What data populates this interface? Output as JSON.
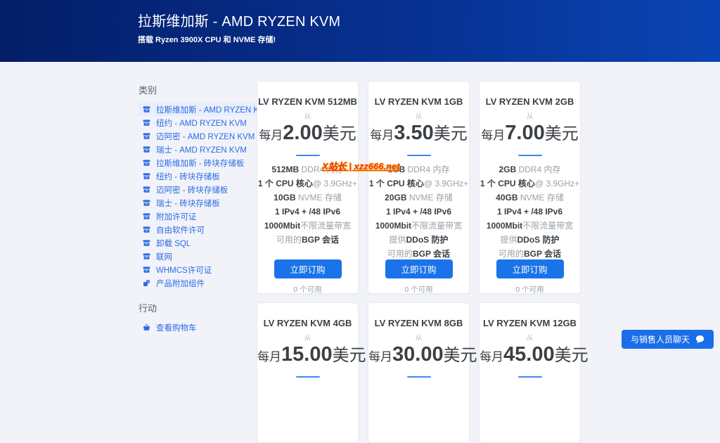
{
  "header": {
    "title": "拉斯维加斯 - AMD RYZEN KVM",
    "subtitle": "搭载 Ryzen 3900X CPU 和 NVME 存储!",
    "gradient_left": "#041e68",
    "gradient_right": "#0a44b4"
  },
  "sidebar": {
    "categories_heading": "类别",
    "items": [
      {
        "label": "拉斯维加斯 - AMD RYZEN KVM",
        "icon": "archive-icon",
        "active": true
      },
      {
        "label": "纽约 - AMD RYZEN KVM",
        "icon": "archive-icon",
        "active": false
      },
      {
        "label": "迈阿密 - AMD RYZEN KVM",
        "icon": "archive-icon",
        "active": false
      },
      {
        "label": "瑞士 - AMD RYZEN KVM",
        "icon": "archive-icon",
        "active": false
      },
      {
        "label": "拉斯维加斯 - 砖块存储板",
        "icon": "archive-icon",
        "active": false
      },
      {
        "label": "纽约 - 砖块存储板",
        "icon": "archive-icon",
        "active": false
      },
      {
        "label": "迈阿密 - 砖块存储板",
        "icon": "archive-icon",
        "active": false
      },
      {
        "label": "瑞士 - 砖块存储板",
        "icon": "archive-icon",
        "active": false
      },
      {
        "label": "附加许可证",
        "icon": "archive-icon",
        "active": false
      },
      {
        "label": "自由软件许可",
        "icon": "archive-icon",
        "active": false
      },
      {
        "label": "卸载 SQL",
        "icon": "archive-icon",
        "active": false
      },
      {
        "label": "联网",
        "icon": "archive-icon",
        "active": false
      },
      {
        "label": "WHMCS许可证",
        "icon": "archive-icon",
        "active": false
      },
      {
        "label": "产品附加组件",
        "icon": "addon-icon",
        "active": false
      }
    ],
    "actions_heading": "行动",
    "actions": [
      {
        "label": "查看购物车",
        "icon": "cart-icon"
      }
    ]
  },
  "plans": {
    "from_label": "从",
    "price_prefix": "每月",
    "price_suffix": "美元",
    "order_button_label": "立即订购",
    "availability_label": "0 个可用",
    "accent_color": "#1a73e8",
    "row1": [
      {
        "title": "LV RYZEN KVM 512MB",
        "price": "2.00",
        "features": [
          [
            {
              "text": "512MB",
              "bold": true
            },
            {
              "text": " DDR4 内存",
              "bold": false
            }
          ],
          [
            {
              "text": "1 个 CPU 核心",
              "bold": true
            },
            {
              "text": "@ 3.9GHz+",
              "bold": false
            }
          ],
          [
            {
              "text": "10GB",
              "bold": true
            },
            {
              "text": " NVME 存储",
              "bold": false
            }
          ],
          [
            {
              "text": "1 IPv4 + /48 IPv6",
              "bold": true
            }
          ],
          [
            {
              "text": "1000Mbit",
              "bold": true
            },
            {
              "text": "不限流量带宽",
              "bold": false
            }
          ],
          [
            {
              "text": "可用的",
              "bold": false
            },
            {
              "text": "BGP 会话",
              "bold": true
            }
          ]
        ]
      },
      {
        "title": "LV RYZEN KVM 1GB",
        "price": "3.50",
        "features": [
          [
            {
              "text": "1GB",
              "bold": true
            },
            {
              "text": " DDR4 内存",
              "bold": false
            }
          ],
          [
            {
              "text": "1 个 CPU 核心",
              "bold": true
            },
            {
              "text": "@ 3.9GHz+",
              "bold": false
            }
          ],
          [
            {
              "text": "20GB",
              "bold": true
            },
            {
              "text": " NVME 存储",
              "bold": false
            }
          ],
          [
            {
              "text": "1 IPv4 + /48 IPv6",
              "bold": true
            }
          ],
          [
            {
              "text": "1000Mbit",
              "bold": true
            },
            {
              "text": "不限流量带宽",
              "bold": false
            }
          ],
          [
            {
              "text": "提供",
              "bold": false
            },
            {
              "text": "DDoS 防护",
              "bold": true
            }
          ],
          [
            {
              "text": "可用的",
              "bold": false
            },
            {
              "text": "BGP 会话",
              "bold": true
            }
          ]
        ]
      },
      {
        "title": "LV RYZEN KVM 2GB",
        "price": "7.00",
        "features": [
          [
            {
              "text": "2GB",
              "bold": true
            },
            {
              "text": " DDR4 内存",
              "bold": false
            }
          ],
          [
            {
              "text": "1 个 CPU 核心",
              "bold": true
            },
            {
              "text": "@ 3.9GHz+",
              "bold": false
            }
          ],
          [
            {
              "text": "40GB",
              "bold": true
            },
            {
              "text": " NVME 存储",
              "bold": false
            }
          ],
          [
            {
              "text": "1 IPv4 + /48 IPv6",
              "bold": true
            }
          ],
          [
            {
              "text": "1000Mbit",
              "bold": true
            },
            {
              "text": "不限流量带宽",
              "bold": false
            }
          ],
          [
            {
              "text": "提供",
              "bold": false
            },
            {
              "text": "DDoS 防护",
              "bold": true
            }
          ],
          [
            {
              "text": "可用的",
              "bold": false
            },
            {
              "text": "BGP 会话",
              "bold": true
            }
          ]
        ]
      }
    ],
    "row2": [
      {
        "title": "LV RYZEN KVM 4GB",
        "price": "15.00"
      },
      {
        "title": "LV RYZEN KVM 8GB",
        "price": "30.00"
      },
      {
        "title": "LV RYZEN KVM 12GB",
        "price": "45.00"
      }
    ]
  },
  "chat_button": {
    "label": "与销售人员聊天",
    "icon": "chat-bubble-icon"
  },
  "watermark": {
    "text": "X站长 | xzz666.net",
    "color": "#ef2d2d",
    "glow_color": "#ffc400"
  }
}
